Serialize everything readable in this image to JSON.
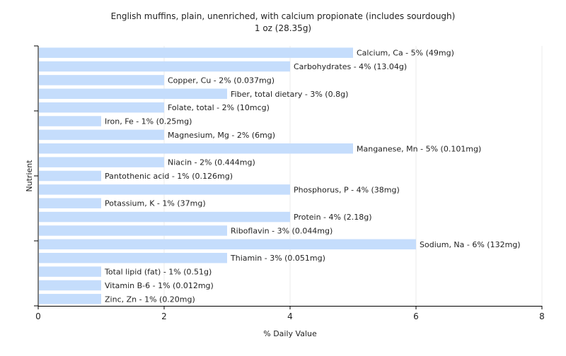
{
  "chart_data": {
    "type": "bar",
    "orientation": "horizontal",
    "title": "English muffins, plain, unenriched, with calcium propionate (includes sourdough)",
    "subtitle": "1 oz (28.35g)",
    "xlabel": "% Daily Value",
    "ylabel": "Nutrient",
    "xlim": [
      0,
      8
    ],
    "xticks": [
      0,
      2,
      4,
      6,
      8
    ],
    "grid": "vertical",
    "bar_color": "#c5ddfc",
    "categories": [
      "Calcium, Ca",
      "Carbohydrates",
      "Copper, Cu",
      "Fiber, total dietary",
      "Folate, total",
      "Iron, Fe",
      "Magnesium, Mg",
      "Manganese, Mn",
      "Niacin",
      "Pantothenic acid",
      "Phosphorus, P",
      "Potassium, K",
      "Protein",
      "Riboflavin",
      "Sodium, Na",
      "Thiamin",
      "Total lipid (fat)",
      "Vitamin B-6",
      "Zinc, Zn"
    ],
    "values": [
      5,
      4,
      2,
      3,
      2,
      1,
      2,
      5,
      2,
      1,
      4,
      1,
      4,
      3,
      6,
      3,
      1,
      1,
      1
    ],
    "labels": [
      "Calcium, Ca - 5% (49mg)",
      "Carbohydrates - 4% (13.04g)",
      "Copper, Cu - 2% (0.037mg)",
      "Fiber, total dietary - 3% (0.8g)",
      "Folate, total - 2% (10mcg)",
      "Iron, Fe - 1% (0.25mg)",
      "Magnesium, Mg - 2% (6mg)",
      "Manganese, Mn - 5% (0.101mg)",
      "Niacin - 2% (0.444mg)",
      "Pantothenic acid - 1% (0.126mg)",
      "Phosphorus, P - 4% (38mg)",
      "Potassium, K - 1% (37mg)",
      "Protein - 4% (2.18g)",
      "Riboflavin - 3% (0.044mg)",
      "Sodium, Na - 6% (132mg)",
      "Thiamin - 3% (0.051mg)",
      "Total lipid (fat) - 1% (0.51g)",
      "Vitamin B-6 - 1% (0.012mg)",
      "Zinc, Zn - 1% (0.20mg)"
    ]
  }
}
